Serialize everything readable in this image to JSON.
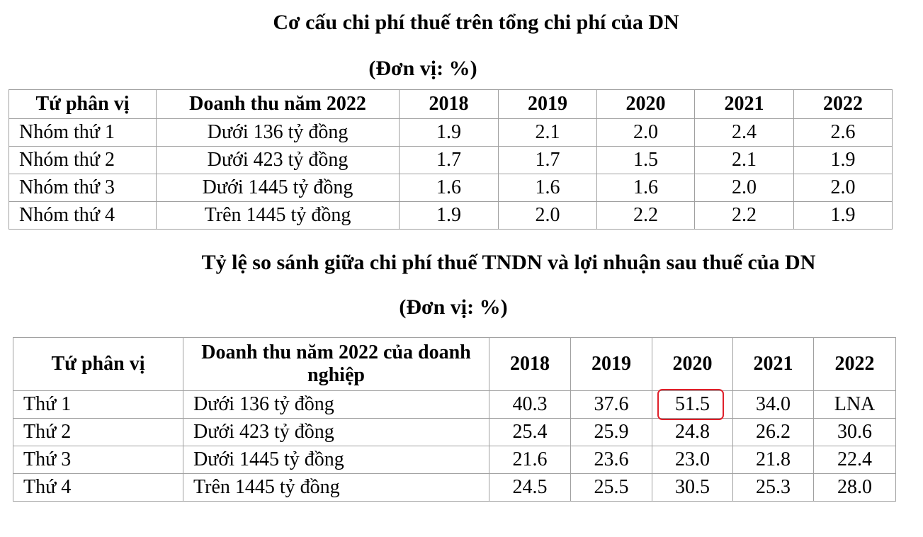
{
  "table1": {
    "title": "Cơ cấu chi phí thuế trên tổng chi phí của DN",
    "unit": "(Đơn vị: %)",
    "header": [
      "Tứ phân vị",
      "Doanh thu năm 2022",
      "2018",
      "2019",
      "2020",
      "2021",
      "2022"
    ],
    "rows": [
      [
        "Nhóm thứ 1",
        "Dưới 136 tỷ đồng",
        "1.9",
        "2.1",
        "2.0",
        "2.4",
        "2.6"
      ],
      [
        "Nhóm thứ 2",
        "Dưới 423 tỷ đồng",
        "1.7",
        "1.7",
        "1.5",
        "2.1",
        "1.9"
      ],
      [
        "Nhóm thứ 3",
        "Dưới 1445 tỷ đồng",
        "1.6",
        "1.6",
        "1.6",
        "2.0",
        "2.0"
      ],
      [
        "Nhóm thứ 4",
        "Trên 1445 tỷ đồng",
        "1.9",
        "2.0",
        "2.2",
        "2.2",
        "1.9"
      ]
    ]
  },
  "table2": {
    "title": "Tỷ lệ so sánh giữa chi phí thuế TNDN và lợi nhuận sau thuế của DN",
    "unit": "(Đơn vị: %)",
    "header": [
      "Tứ phân vị",
      "Doanh thu năm 2022 của doanh nghiệp",
      "2018",
      "2019",
      "2020",
      "2021",
      "2022"
    ],
    "rows": [
      [
        "Thứ 1",
        "Dưới 136 tỷ đồng",
        "40.3",
        "37.6",
        "51.5",
        "34.0",
        "LNA"
      ],
      [
        "Thứ 2",
        "Dưới 423 tỷ đồng",
        "25.4",
        "25.9",
        "24.8",
        "26.2",
        "30.6"
      ],
      [
        "Thứ 3",
        "Dưới 1445 tỷ đồng",
        "21.6",
        "23.6",
        "23.0",
        "21.8",
        "22.4"
      ],
      [
        "Thứ 4",
        "Trên 1445 tỷ đồng",
        "24.5",
        "25.5",
        "30.5",
        "25.3",
        "28.0"
      ]
    ]
  }
}
